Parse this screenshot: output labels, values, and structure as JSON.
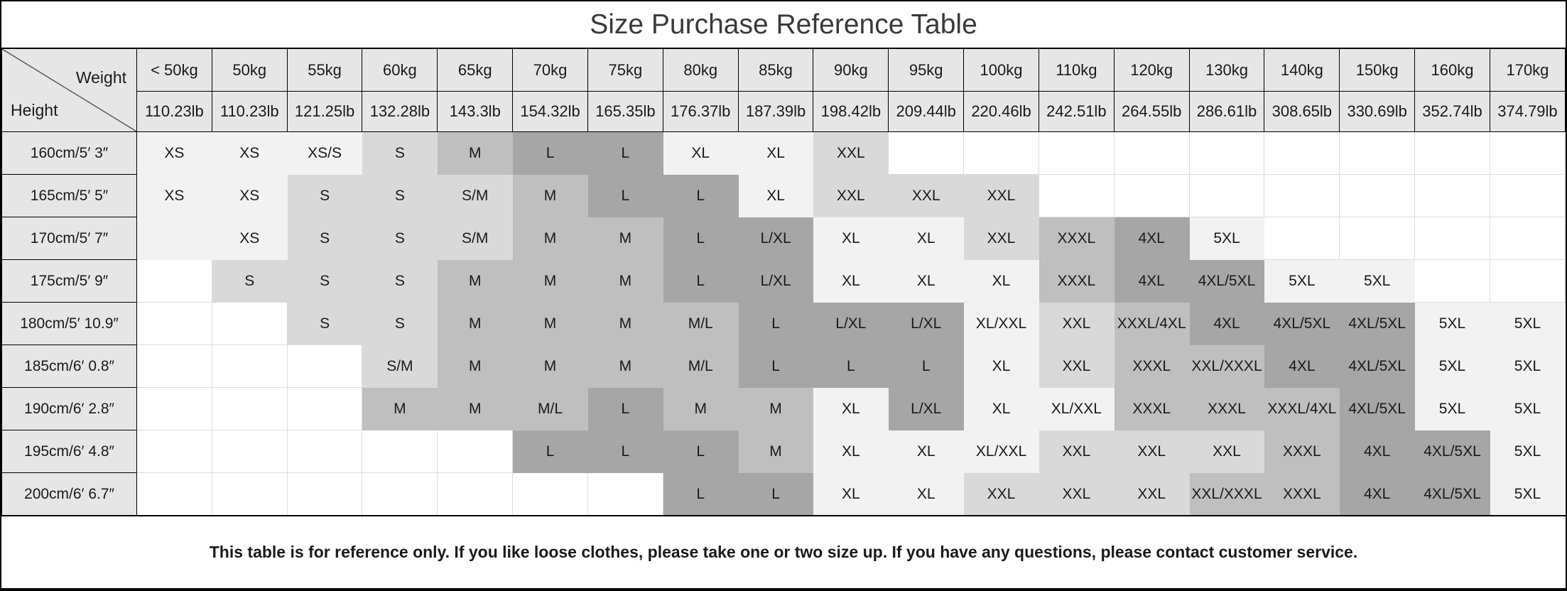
{
  "title": "Size Purchase Reference Table",
  "corner": {
    "weight_label": "Weight",
    "height_label": "Height"
  },
  "columns_kg": [
    "< 50kg",
    "50kg",
    "55kg",
    "60kg",
    "65kg",
    "70kg",
    "75kg",
    "80kg",
    "85kg",
    "90kg",
    "95kg",
    "100kg",
    "110kg",
    "120kg",
    "130kg",
    "140kg",
    "150kg",
    "160kg",
    "170kg"
  ],
  "columns_lb": [
    "110.23lb",
    "110.23lb",
    "121.25lb",
    "132.28lb",
    "143.3lb",
    "154.32lb",
    "165.35lb",
    "176.37lb",
    "187.39lb",
    "198.42lb",
    "209.44lb",
    "220.46lb",
    "242.51lb",
    "264.55lb",
    "286.61lb",
    "308.65lb",
    "330.69lb",
    "352.74lb",
    "374.79lb"
  ],
  "rows": [
    {
      "height": "160cm/5′ 3″",
      "cells": [
        [
          "XS",
          1
        ],
        [
          "XS",
          1
        ],
        [
          "XS/S",
          1
        ],
        [
          "S",
          2
        ],
        [
          "M",
          3
        ],
        [
          "L",
          4
        ],
        [
          "L",
          4
        ],
        [
          "XL",
          1
        ],
        [
          "XL",
          1
        ],
        [
          "XXL",
          2
        ],
        [
          "",
          0
        ],
        [
          "",
          0
        ],
        [
          "",
          0
        ],
        [
          "",
          0
        ],
        [
          "",
          0
        ],
        [
          "",
          0
        ],
        [
          "",
          0
        ],
        [
          "",
          0
        ],
        [
          "",
          0
        ]
      ]
    },
    {
      "height": "165cm/5′ 5″",
      "cells": [
        [
          "XS",
          1
        ],
        [
          "XS",
          1
        ],
        [
          "S",
          2
        ],
        [
          "S",
          2
        ],
        [
          "S/M",
          2
        ],
        [
          "M",
          3
        ],
        [
          "L",
          4
        ],
        [
          "L",
          4
        ],
        [
          "XL",
          1
        ],
        [
          "XXL",
          2
        ],
        [
          "XXL",
          2
        ],
        [
          "XXL",
          2
        ],
        [
          "",
          0
        ],
        [
          "",
          0
        ],
        [
          "",
          0
        ],
        [
          "",
          0
        ],
        [
          "",
          0
        ],
        [
          "",
          0
        ],
        [
          "",
          0
        ]
      ]
    },
    {
      "height": "170cm/5′ 7″",
      "cells": [
        [
          "",
          1
        ],
        [
          "XS",
          1
        ],
        [
          "S",
          2
        ],
        [
          "S",
          2
        ],
        [
          "S/M",
          2
        ],
        [
          "M",
          3
        ],
        [
          "M",
          3
        ],
        [
          "L",
          4
        ],
        [
          "L/XL",
          4
        ],
        [
          "XL",
          1
        ],
        [
          "XL",
          1
        ],
        [
          "XXL",
          2
        ],
        [
          "XXXL",
          3
        ],
        [
          "4XL",
          4
        ],
        [
          "5XL",
          1
        ],
        [
          "",
          0
        ],
        [
          "",
          0
        ],
        [
          "",
          0
        ],
        [
          "",
          0
        ]
      ]
    },
    {
      "height": "175cm/5′ 9″",
      "cells": [
        [
          "",
          0
        ],
        [
          "S",
          2
        ],
        [
          "S",
          2
        ],
        [
          "S",
          2
        ],
        [
          "M",
          3
        ],
        [
          "M",
          3
        ],
        [
          "M",
          3
        ],
        [
          "L",
          4
        ],
        [
          "L/XL",
          4
        ],
        [
          "XL",
          1
        ],
        [
          "XL",
          1
        ],
        [
          "XL",
          1
        ],
        [
          "XXXL",
          3
        ],
        [
          "4XL",
          4
        ],
        [
          "4XL/5XL",
          4
        ],
        [
          "5XL",
          1
        ],
        [
          "5XL",
          1
        ],
        [
          "",
          0
        ],
        [
          "",
          0
        ]
      ]
    },
    {
      "height": "180cm/5′ 10.9″",
      "cells": [
        [
          "",
          0
        ],
        [
          "",
          0
        ],
        [
          "S",
          2
        ],
        [
          "S",
          2
        ],
        [
          "M",
          3
        ],
        [
          "M",
          3
        ],
        [
          "M",
          3
        ],
        [
          "M/L",
          3
        ],
        [
          "L",
          4
        ],
        [
          "L/XL",
          4
        ],
        [
          "L/XL",
          4
        ],
        [
          "XL/XXL",
          1
        ],
        [
          "XXL",
          2
        ],
        [
          "XXXL/4XL",
          3
        ],
        [
          "4XL",
          4
        ],
        [
          "4XL/5XL",
          4
        ],
        [
          "4XL/5XL",
          4
        ],
        [
          "5XL",
          1
        ],
        [
          "5XL",
          1
        ]
      ]
    },
    {
      "height": "185cm/6′ 0.8″",
      "cells": [
        [
          "",
          0
        ],
        [
          "",
          0
        ],
        [
          "",
          0
        ],
        [
          "S/M",
          2
        ],
        [
          "M",
          3
        ],
        [
          "M",
          3
        ],
        [
          "M",
          3
        ],
        [
          "M/L",
          3
        ],
        [
          "L",
          4
        ],
        [
          "L",
          4
        ],
        [
          "L",
          4
        ],
        [
          "XL",
          1
        ],
        [
          "XXL",
          2
        ],
        [
          "XXXL",
          3
        ],
        [
          "XXL/XXXL",
          3
        ],
        [
          "4XL",
          4
        ],
        [
          "4XL/5XL",
          4
        ],
        [
          "5XL",
          1
        ],
        [
          "5XL",
          1
        ]
      ]
    },
    {
      "height": "190cm/6′ 2.8″",
      "cells": [
        [
          "",
          0
        ],
        [
          "",
          0
        ],
        [
          "",
          0
        ],
        [
          "M",
          3
        ],
        [
          "M",
          3
        ],
        [
          "M/L",
          3
        ],
        [
          "L",
          4
        ],
        [
          "M",
          3
        ],
        [
          "M",
          3
        ],
        [
          "XL",
          1
        ],
        [
          "L/XL",
          4
        ],
        [
          "XL",
          1
        ],
        [
          "XL/XXL",
          1
        ],
        [
          "XXXL",
          3
        ],
        [
          "XXXL",
          3
        ],
        [
          "XXXL/4XL",
          3
        ],
        [
          "4XL/5XL",
          4
        ],
        [
          "5XL",
          1
        ],
        [
          "5XL",
          1
        ]
      ]
    },
    {
      "height": "195cm/6′ 4.8″",
      "cells": [
        [
          "",
          0
        ],
        [
          "",
          0
        ],
        [
          "",
          0
        ],
        [
          "",
          0
        ],
        [
          "",
          0
        ],
        [
          "L",
          4
        ],
        [
          "L",
          4
        ],
        [
          "L",
          4
        ],
        [
          "M",
          3
        ],
        [
          "XL",
          1
        ],
        [
          "XL",
          1
        ],
        [
          "XL/XXL",
          1
        ],
        [
          "XXL",
          2
        ],
        [
          "XXL",
          2
        ],
        [
          "XXL",
          2
        ],
        [
          "XXXL",
          3
        ],
        [
          "4XL",
          4
        ],
        [
          "4XL/5XL",
          4
        ],
        [
          "5XL",
          1
        ]
      ]
    },
    {
      "height": "200cm/6′ 6.7″",
      "cells": [
        [
          "",
          0
        ],
        [
          "",
          0
        ],
        [
          "",
          0
        ],
        [
          "",
          0
        ],
        [
          "",
          0
        ],
        [
          "",
          0
        ],
        [
          "",
          0
        ],
        [
          "L",
          4
        ],
        [
          "L",
          4
        ],
        [
          "XL",
          1
        ],
        [
          "XL",
          1
        ],
        [
          "XXL",
          2
        ],
        [
          "XXL",
          2
        ],
        [
          "XXL",
          2
        ],
        [
          "XXL/XXXL",
          3
        ],
        [
          "XXXL",
          3
        ],
        [
          "4XL",
          4
        ],
        [
          "4XL/5XL",
          4
        ],
        [
          "5XL",
          1
        ]
      ]
    }
  ],
  "footer_note": "This table is for reference only. If you like loose clothes, please take one or two size up. If you have any questions, please contact customer service.",
  "colors": {
    "header_fill": "#e7e6e6",
    "shade0": "#ffffff",
    "shade1": "#f2f2f2",
    "shade2": "#d9d9d9",
    "shade3": "#bfbfbf",
    "shade4": "#a6a6a6",
    "grid": "#dcdcdc",
    "border": "#000000",
    "diagonal": "#555555"
  }
}
